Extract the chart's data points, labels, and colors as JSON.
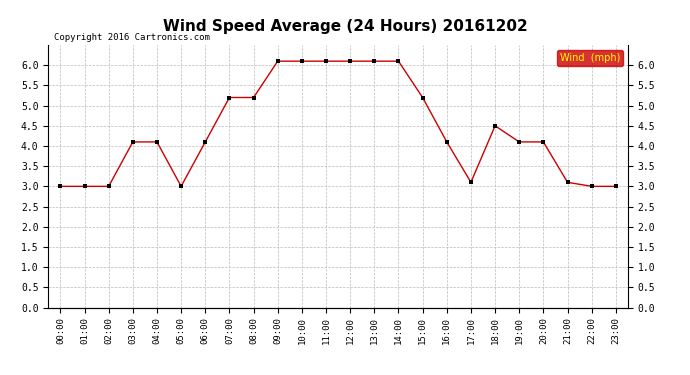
{
  "title": "Wind Speed Average (24 Hours) 20161202",
  "copyright": "Copyright 2016 Cartronics.com",
  "legend_label": "Wind  (mph)",
  "x_labels": [
    "00:00",
    "01:00",
    "02:00",
    "03:00",
    "04:00",
    "05:00",
    "06:00",
    "07:00",
    "08:00",
    "09:00",
    "10:00",
    "11:00",
    "12:00",
    "13:00",
    "14:00",
    "15:00",
    "16:00",
    "17:00",
    "18:00",
    "19:00",
    "20:00",
    "21:00",
    "22:00",
    "23:00"
  ],
  "y_values": [
    3.0,
    3.0,
    3.0,
    4.1,
    4.1,
    3.0,
    4.1,
    5.2,
    5.2,
    6.1,
    6.1,
    6.1,
    6.1,
    6.1,
    6.1,
    5.2,
    4.1,
    3.1,
    4.5,
    4.1,
    4.1,
    3.1,
    3.0,
    3.0
  ],
  "line_color": "#cc0000",
  "marker_color": "#000000",
  "bg_color": "#ffffff",
  "grid_color": "#bbbbbb",
  "ylim": [
    0.0,
    6.5
  ],
  "yticks": [
    0.0,
    0.5,
    1.0,
    1.5,
    2.0,
    2.5,
    3.0,
    3.5,
    4.0,
    4.5,
    5.0,
    5.5,
    6.0
  ],
  "title_fontsize": 11,
  "legend_bg": "#cc0000",
  "legend_text_color": "#ffff00"
}
